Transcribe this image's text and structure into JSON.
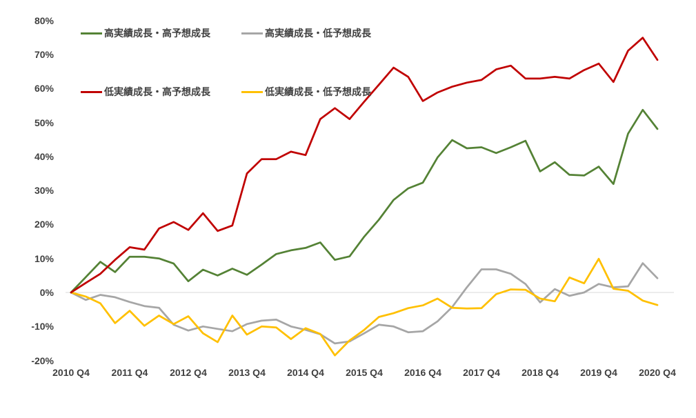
{
  "chart_data": {
    "type": "line",
    "title": "",
    "frequency": "quarterly",
    "x_tick_labels": [
      "2010 Q4",
      "2011 Q4",
      "2012 Q4",
      "2013 Q4",
      "2014 Q4",
      "2015 Q4",
      "2016 Q4",
      "2017 Q4",
      "2018 Q4",
      "2019 Q4",
      "2020 Q4"
    ],
    "y_ticks": [
      80,
      70,
      60,
      50,
      40,
      30,
      20,
      10,
      0,
      -10,
      -20
    ],
    "y_unit": "%",
    "ylim": [
      -20,
      80
    ],
    "grid": "single horizontal gridline at 0% only",
    "legend_position": "top-left, two rows",
    "series": [
      {
        "label": "高実績成長・高予想成長",
        "color": "#548235",
        "values": [
          0,
          4.5,
          9,
          6,
          10.5,
          10.5,
          10,
          8.5,
          3.3,
          6.7,
          5,
          7,
          5.2,
          8.2,
          11.3,
          12.4,
          13.1,
          14.7,
          9.6,
          10.6,
          16.4,
          21.4,
          27.2,
          30.6,
          32.3,
          39.7,
          44.8,
          42.4,
          42.7,
          41,
          42.7,
          44.6,
          35.6,
          38.3,
          34.6,
          34.4,
          37,
          31.9,
          46.7,
          53.7,
          48.1
        ]
      },
      {
        "label": "高実績成長・低予想成長",
        "color": "#A6A6A6",
        "values": [
          0,
          -2.2,
          -0.7,
          -1.4,
          -2.8,
          -4,
          -4.5,
          -9.5,
          -11.2,
          -10,
          -10.7,
          -11.4,
          -9.3,
          -8.3,
          -8,
          -10,
          -11,
          -12.3,
          -15,
          -14.4,
          -12,
          -9.5,
          -10,
          -11.7,
          -11.4,
          -8.5,
          -4.3,
          1.5,
          6.8,
          6.8,
          5.5,
          2.5,
          -2.9,
          1,
          -1,
          0,
          2.5,
          1.5,
          1.8,
          8.6,
          4.2
        ]
      },
      {
        "label": "低実績成長・高予想成長",
        "color": "#C00000",
        "values": [
          0,
          2.8,
          5.5,
          9.6,
          13.3,
          12.6,
          18.8,
          20.7,
          18.4,
          23.3,
          18.1,
          19.7,
          35,
          39.2,
          39.2,
          41.4,
          40.4,
          51,
          54.2,
          51,
          56.1,
          61.1,
          66.1,
          63.4,
          56.3,
          58.8,
          60.5,
          61.7,
          62.5,
          65.6,
          66.7,
          62.9,
          62.9,
          63.4,
          62.9,
          65.4,
          67.3,
          61.9,
          71.1,
          74.9,
          68.4
        ]
      },
      {
        "label": "低実績成長・低予想成長",
        "color": "#FFC000",
        "values": [
          0,
          -1.2,
          -3.2,
          -9,
          -5.4,
          -9.8,
          -6.8,
          -9.3,
          -7,
          -12,
          -14.6,
          -6.8,
          -12.4,
          -10,
          -10.3,
          -13.7,
          -10.5,
          -12.2,
          -18.5,
          -14.1,
          -11,
          -7.2,
          -6.1,
          -4.6,
          -3.8,
          -1.8,
          -4.5,
          -4.7,
          -4.6,
          -0.5,
          0.9,
          0.8,
          -1.8,
          -2.6,
          4.4,
          2.7,
          9.9,
          1.1,
          0.5,
          -2.4,
          -3.7
        ]
      }
    ]
  },
  "colors": {
    "axis_text": "#404040",
    "gridline": "#D9D9D9",
    "background": "#FFFFFF"
  }
}
